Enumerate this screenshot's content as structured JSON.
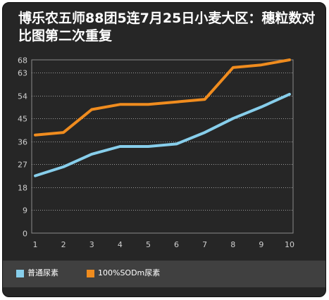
{
  "chart_data": {
    "type": "line",
    "title": "博乐农五师88团5连7月25日小麦大区：穗粒数对比图第二次重复",
    "x": [
      1,
      2,
      3,
      4,
      5,
      6,
      7,
      8,
      9,
      10
    ],
    "x_tick_labels": [
      "1",
      "2",
      "3",
      "4",
      "5",
      "6",
      "7",
      "8",
      "9",
      "10"
    ],
    "y_tick_labels": [
      "0",
      "9",
      "18",
      "27",
      "36",
      "45",
      "54",
      "63",
      "68"
    ],
    "y_ticks": [
      0,
      9,
      18,
      27,
      36,
      45,
      54,
      63,
      68
    ],
    "ylim": [
      0,
      68
    ],
    "series": [
      {
        "name": "普通尿素",
        "color": "#87ceeb",
        "values": [
          22.5,
          26,
          31,
          34,
          34,
          35,
          39.5,
          45,
          49.5,
          54.5
        ]
      },
      {
        "name": "100%SODm尿素",
        "color": "#f08c1e",
        "values": [
          38.5,
          39.5,
          48.5,
          50.5,
          50.5,
          51.5,
          52.5,
          65,
          66,
          68
        ]
      }
    ],
    "grid": true,
    "legend": "bottom",
    "background": "#262626",
    "legend_background": "#404040"
  }
}
